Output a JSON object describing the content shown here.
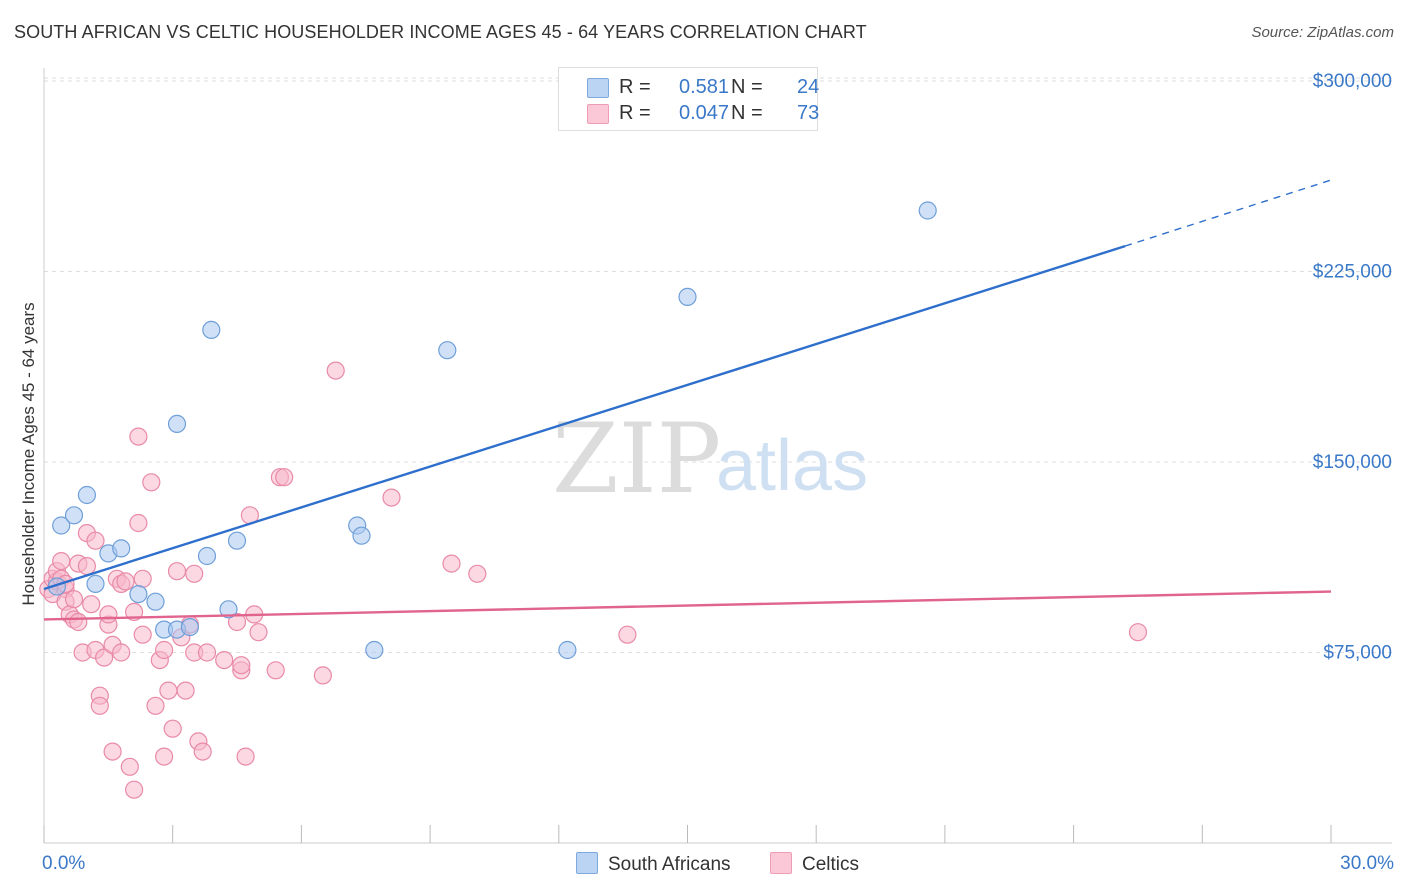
{
  "header": {
    "title": "SOUTH AFRICAN VS CELTIC HOUSEHOLDER INCOME AGES 45 - 64 YEARS CORRELATION CHART",
    "source": "Source: ZipAtlas.com"
  },
  "watermark": {
    "part1": "ZIP",
    "part2": "atlas"
  },
  "legend": {
    "rows": [
      {
        "r_label": "R =",
        "r_value": "0.581",
        "n_label": "N =",
        "n_value": "24",
        "color": "#a9c8f0"
      },
      {
        "r_label": "R =",
        "r_value": "0.047",
        "n_label": "N =",
        "n_value": "73",
        "color": "#f7b8cb"
      }
    ]
  },
  "bottom_legend": {
    "items": [
      {
        "label": "South Africans",
        "color": "#a9c8f0"
      },
      {
        "label": "Celtics",
        "color": "#f7b8cb"
      }
    ]
  },
  "colors": {
    "blue_point_fill": "#a9c8f0",
    "blue_point_stroke": "#6f9fd8",
    "blue_line": "#2f6fcc",
    "pink_point_fill": "#f7b8cb",
    "pink_point_stroke": "#e98aa8",
    "pink_line": "#e0648e",
    "grid": "#dddddd",
    "tick_text": "#3a78c8"
  },
  "chart_data": {
    "type": "scatter",
    "title": "SOUTH AFRICAN VS CELTIC HOUSEHOLDER INCOME AGES 45 - 64 YEARS CORRELATION CHART",
    "xlabel": "",
    "ylabel": "Householder Income Ages 45 - 64 years",
    "xlim": [
      0,
      30
    ],
    "ylim": [
      0,
      310000
    ],
    "x_tick_labels": [
      "0.0%",
      "30.0%"
    ],
    "y_ticks": [
      75000,
      150000,
      225000,
      300000
    ],
    "y_tick_labels": [
      "$75,000",
      "$150,000",
      "$225,000",
      "$300,000"
    ],
    "grid": true,
    "legend_position": "top-center",
    "series": [
      {
        "name": "South Africans",
        "r": 0.581,
        "n": 24,
        "points": [
          [
            0.3,
            101000
          ],
          [
            0.4,
            125000
          ],
          [
            0.7,
            129000
          ],
          [
            1.0,
            137000
          ],
          [
            1.2,
            102000
          ],
          [
            1.5,
            114000
          ],
          [
            1.8,
            116000
          ],
          [
            2.2,
            98000
          ],
          [
            2.6,
            95000
          ],
          [
            2.8,
            84000
          ],
          [
            3.1,
            84000
          ],
          [
            3.1,
            165000
          ],
          [
            3.4,
            85000
          ],
          [
            3.8,
            113000
          ],
          [
            3.9,
            202000
          ],
          [
            4.3,
            92000
          ],
          [
            4.5,
            119000
          ],
          [
            7.3,
            125000
          ],
          [
            7.4,
            121000
          ],
          [
            7.7,
            76000
          ],
          [
            9.4,
            194000
          ],
          [
            12.2,
            76000
          ],
          [
            15.0,
            215000
          ],
          [
            20.6,
            249000
          ]
        ],
        "trend_solid": [
          [
            0,
            100000
          ],
          [
            25.2,
            235000
          ]
        ],
        "trend_dashed": [
          [
            25.2,
            235000
          ],
          [
            30,
            261000
          ]
        ]
      },
      {
        "name": "Celtics",
        "r": 0.047,
        "n": 73,
        "points": [
          [
            0.1,
            100000
          ],
          [
            0.2,
            104000
          ],
          [
            0.2,
            98000
          ],
          [
            0.3,
            103000
          ],
          [
            0.3,
            107000
          ],
          [
            0.4,
            111000
          ],
          [
            0.4,
            104000
          ],
          [
            0.5,
            100000
          ],
          [
            0.5,
            95000
          ],
          [
            0.5,
            102000
          ],
          [
            0.6,
            90000
          ],
          [
            0.7,
            96000
          ],
          [
            0.7,
            88000
          ],
          [
            0.8,
            110000
          ],
          [
            0.8,
            87000
          ],
          [
            0.9,
            75000
          ],
          [
            1.0,
            109000
          ],
          [
            1.0,
            122000
          ],
          [
            1.1,
            94000
          ],
          [
            1.2,
            76000
          ],
          [
            1.2,
            119000
          ],
          [
            1.3,
            58000
          ],
          [
            1.3,
            54000
          ],
          [
            1.4,
            73000
          ],
          [
            1.5,
            86000
          ],
          [
            1.5,
            90000
          ],
          [
            1.6,
            78000
          ],
          [
            1.6,
            36000
          ],
          [
            1.7,
            104000
          ],
          [
            1.8,
            102000
          ],
          [
            1.8,
            75000
          ],
          [
            1.9,
            103000
          ],
          [
            2.0,
            30000
          ],
          [
            2.1,
            21000
          ],
          [
            2.1,
            91000
          ],
          [
            2.2,
            160000
          ],
          [
            2.2,
            126000
          ],
          [
            2.3,
            104000
          ],
          [
            2.3,
            82000
          ],
          [
            2.5,
            142000
          ],
          [
            2.6,
            54000
          ],
          [
            2.7,
            72000
          ],
          [
            2.8,
            76000
          ],
          [
            2.8,
            34000
          ],
          [
            2.9,
            60000
          ],
          [
            3.0,
            45000
          ],
          [
            3.1,
            107000
          ],
          [
            3.2,
            81000
          ],
          [
            3.3,
            60000
          ],
          [
            3.4,
            86000
          ],
          [
            3.5,
            75000
          ],
          [
            3.5,
            106000
          ],
          [
            3.6,
            40000
          ],
          [
            3.7,
            36000
          ],
          [
            3.8,
            75000
          ],
          [
            4.2,
            72000
          ],
          [
            4.5,
            87000
          ],
          [
            4.6,
            68000
          ],
          [
            4.6,
            70000
          ],
          [
            4.7,
            34000
          ],
          [
            4.8,
            129000
          ],
          [
            4.9,
            90000
          ],
          [
            5.0,
            83000
          ],
          [
            5.4,
            68000
          ],
          [
            5.5,
            144000
          ],
          [
            5.6,
            144000
          ],
          [
            6.5,
            66000
          ],
          [
            6.8,
            186000
          ],
          [
            8.1,
            136000
          ],
          [
            9.5,
            110000
          ],
          [
            10.1,
            106000
          ],
          [
            13.6,
            82000
          ],
          [
            25.5,
            83000
          ]
        ],
        "trend_solid": [
          [
            0,
            88000
          ],
          [
            30,
            99000
          ]
        ]
      }
    ]
  }
}
